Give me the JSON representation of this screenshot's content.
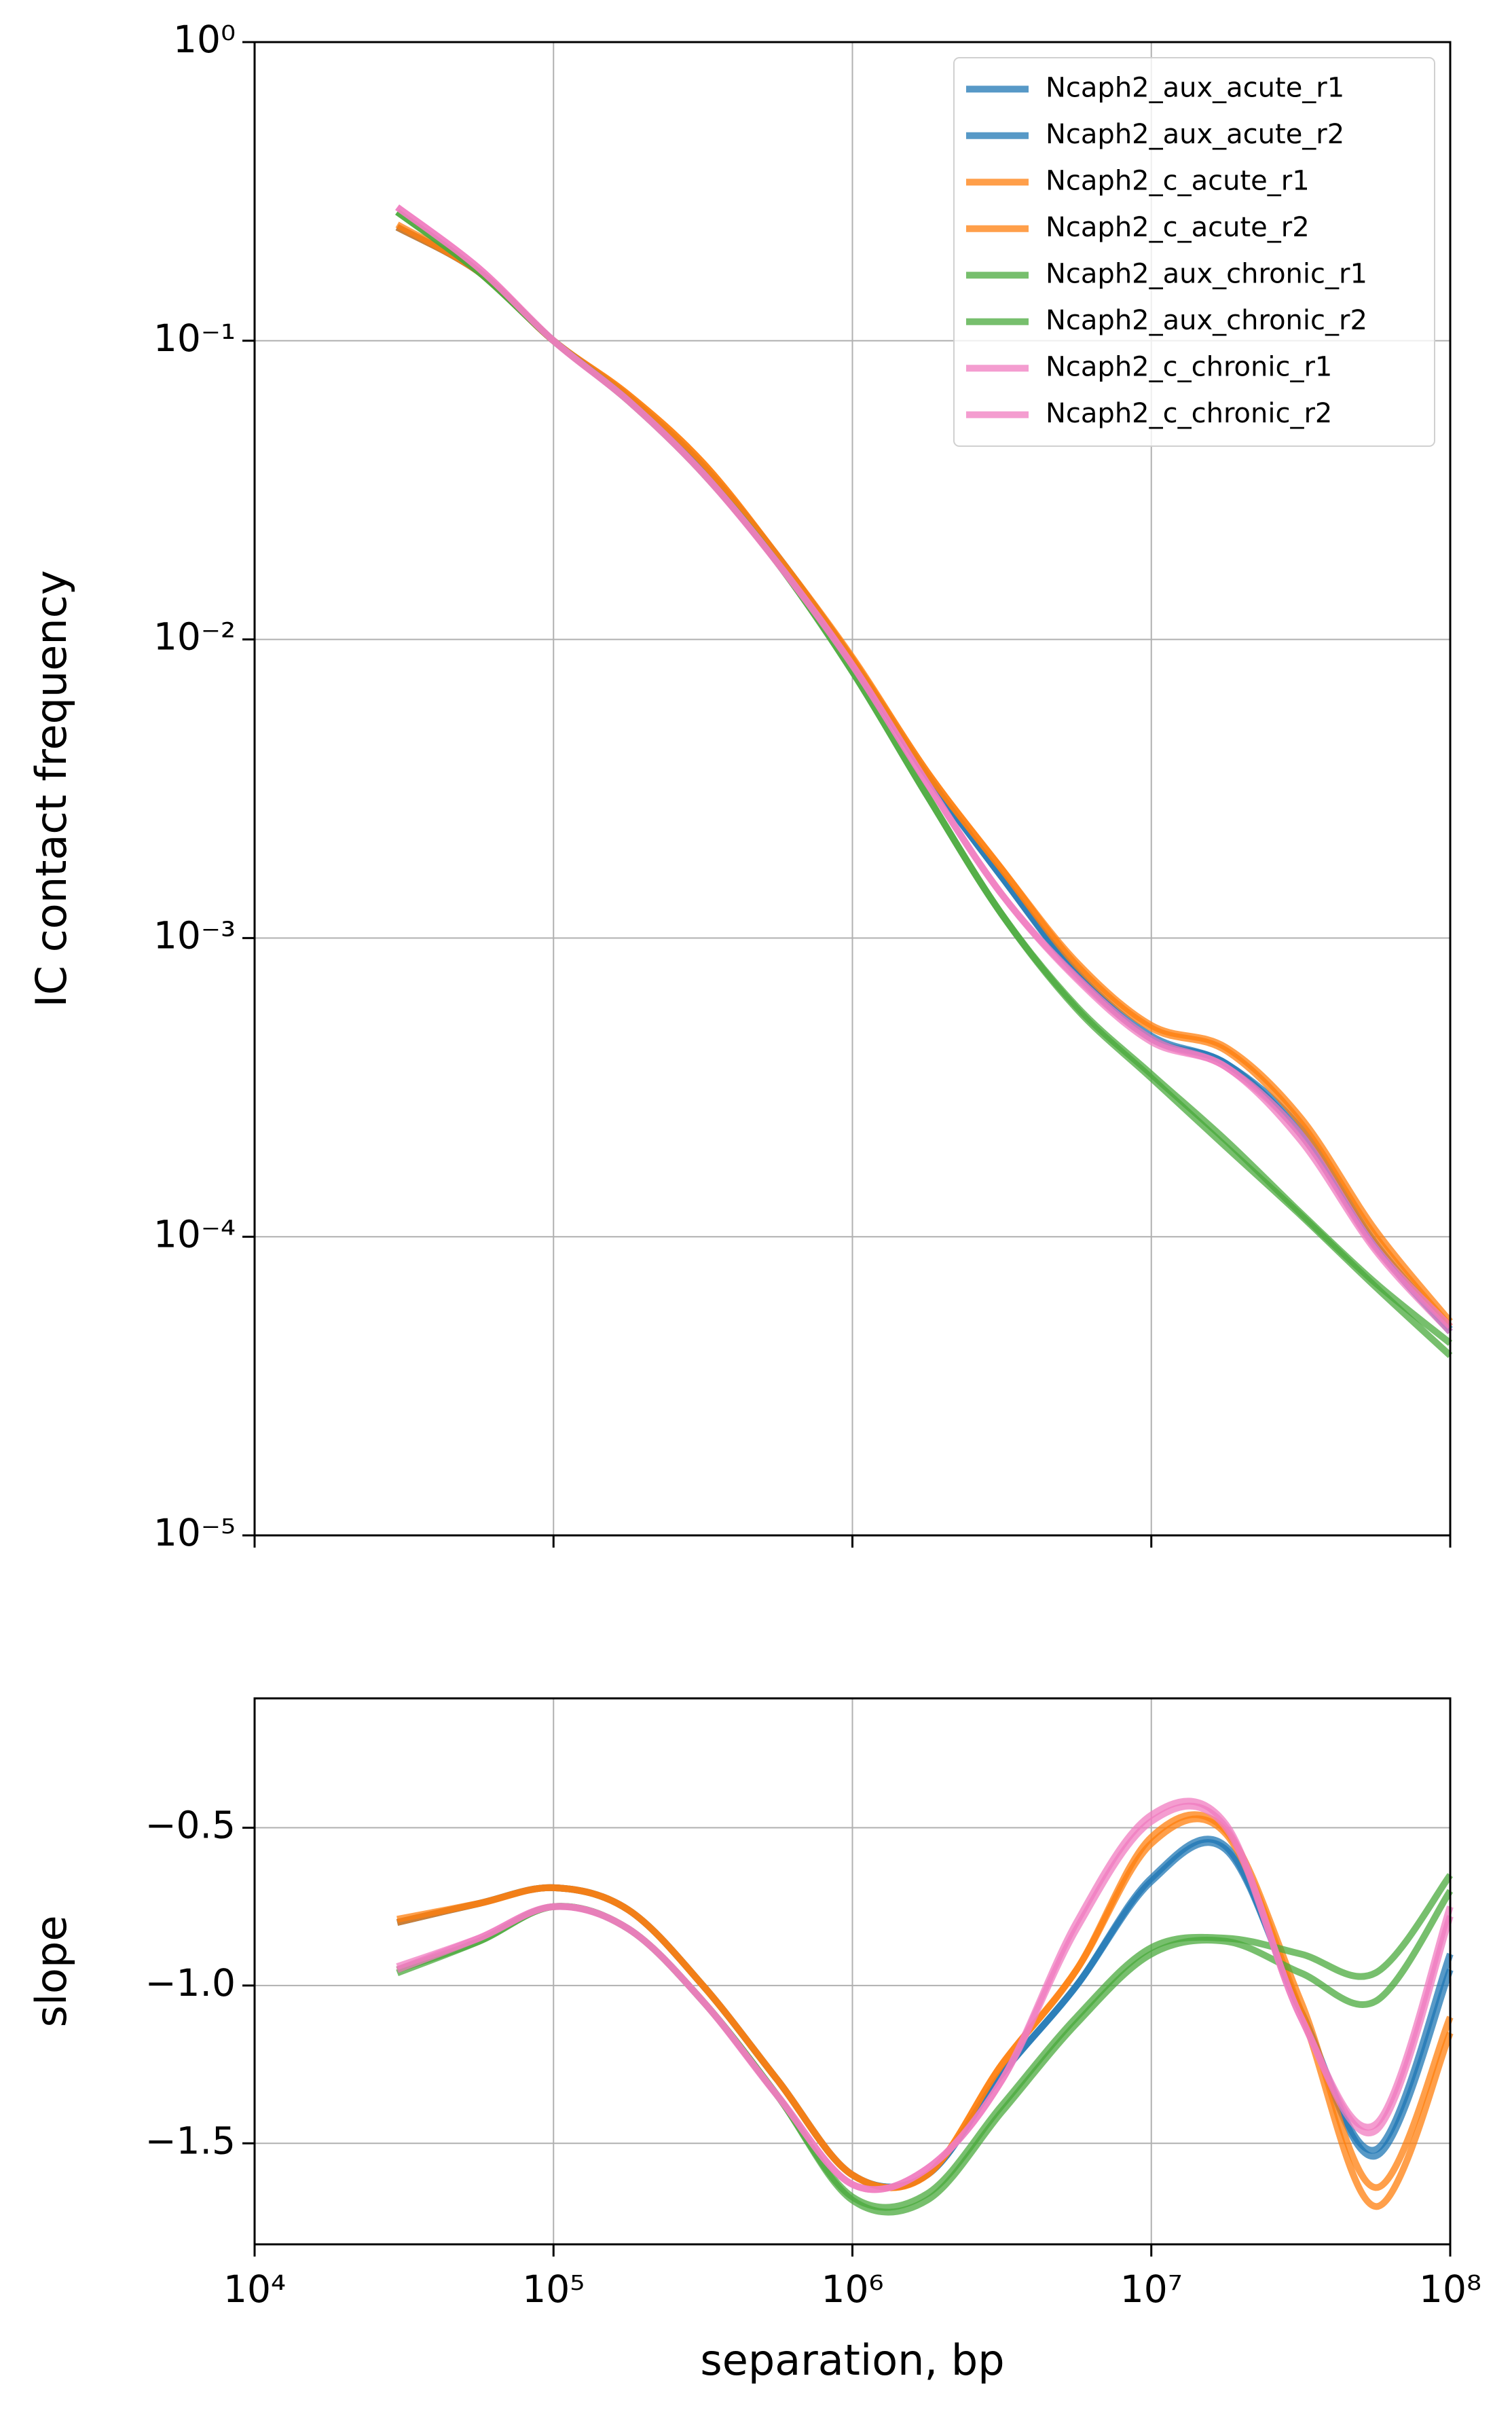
{
  "chart_data": [
    {
      "type": "line",
      "ylabel": "IC contact frequency",
      "log_x": true,
      "log_y": true,
      "grid": true,
      "legend": "upper right",
      "x": [
        30000,
        56234,
        100000,
        177828,
        316228,
        562341,
        1000000,
        1778279,
        3162278,
        5623413,
        10000000,
        17782794,
        31622777,
        56234133,
        100000000
      ],
      "xlim": [
        10000,
        100000000
      ],
      "xticks": [
        10000,
        100000,
        1000000,
        10000000,
        100000000
      ],
      "ylim": [
        1e-05,
        1
      ],
      "yticks": [
        {
          "value": 1,
          "label": "10⁰"
        },
        {
          "value": 0.1,
          "label": "10⁻¹"
        },
        {
          "value": 0.01,
          "label": "10⁻²"
        },
        {
          "value": 0.001,
          "label": "10⁻³"
        },
        {
          "value": 0.0001,
          "label": "10⁻⁴"
        },
        {
          "value": 1e-05,
          "label": "10⁻⁵"
        }
      ],
      "series": [
        {
          "name": "Ncaph2_aux_acute_r1",
          "color": "#1f77b4",
          "values": [
            0.24,
            0.17,
            0.1,
            0.065,
            0.038,
            0.019,
            0.0085,
            0.0035,
            0.0016,
            0.00076,
            0.00046,
            0.00038,
            0.00022,
            9.3e-05,
            4.8e-05
          ]
        },
        {
          "name": "Ncaph2_aux_acute_r2",
          "color": "#1f77b4",
          "values": [
            0.24,
            0.17,
            0.1,
            0.065,
            0.038,
            0.019,
            0.0085,
            0.0035,
            0.0016,
            0.00077,
            0.00047,
            0.00038,
            0.00023,
            9.5e-05,
            4.9e-05
          ]
        },
        {
          "name": "Ncaph2_c_acute_r1",
          "color": "#ff7f0e",
          "values": [
            0.24,
            0.17,
            0.1,
            0.066,
            0.039,
            0.019,
            0.0087,
            0.0036,
            0.0017,
            0.00083,
            0.00051,
            0.00043,
            0.00025,
            0.000105,
            5.2e-05
          ]
        },
        {
          "name": "Ncaph2_c_acute_r2",
          "color": "#ff7f0e",
          "values": [
            0.245,
            0.17,
            0.1,
            0.066,
            0.039,
            0.019,
            0.0086,
            0.0036,
            0.0017,
            0.00081,
            0.0005,
            0.00042,
            0.00024,
            0.0001,
            5e-05
          ]
        },
        {
          "name": "Ncaph2_aux_chronic_r1",
          "color": "#4aa93c",
          "values": [
            0.27,
            0.17,
            0.1,
            0.063,
            0.036,
            0.018,
            0.0078,
            0.003,
            0.0012,
            0.00058,
            0.00034,
            0.0002,
            0.000118,
            6.8e-05,
            4e-05
          ]
        },
        {
          "name": "Ncaph2_aux_chronic_r2",
          "color": "#4aa93c",
          "values": [
            0.27,
            0.17,
            0.1,
            0.063,
            0.036,
            0.018,
            0.0078,
            0.003,
            0.0012,
            0.00059,
            0.00035,
            0.00021,
            0.00012,
            7e-05,
            4.4e-05
          ]
        },
        {
          "name": "Ncaph2_c_chronic_r1",
          "color": "#f07cc0",
          "values": [
            0.28,
            0.175,
            0.1,
            0.063,
            0.036,
            0.018,
            0.0082,
            0.0033,
            0.0014,
            0.00073,
            0.00045,
            0.00037,
            0.00021,
            9e-05,
            4.8e-05
          ]
        },
        {
          "name": "Ncaph2_c_chronic_r2",
          "color": "#f07cc0",
          "values": [
            0.28,
            0.175,
            0.1,
            0.063,
            0.036,
            0.018,
            0.0082,
            0.0033,
            0.0014,
            0.00074,
            0.00046,
            0.00037,
            0.00022,
            9.2e-05,
            5e-05
          ]
        }
      ]
    },
    {
      "type": "line",
      "ylabel": "slope",
      "xlabel": "separation, bp",
      "log_x": true,
      "log_y": false,
      "grid": true,
      "x": [
        30000,
        56234,
        100000,
        177828,
        316228,
        562341,
        1000000,
        1778279,
        3162278,
        5623413,
        10000000,
        17782794,
        31622777,
        56234133,
        100000000
      ],
      "xlim": [
        10000,
        100000000
      ],
      "xticks": [
        {
          "value": 10000,
          "label": "10⁴"
        },
        {
          "value": 100000,
          "label": "10⁵"
        },
        {
          "value": 1000000,
          "label": "10⁶"
        },
        {
          "value": 10000000,
          "label": "10⁷"
        },
        {
          "value": 100000000,
          "label": "10⁸"
        }
      ],
      "ylim": [
        -1.82,
        -0.09
      ],
      "yticks": [
        {
          "value": -0.5,
          "label": "−0.5"
        },
        {
          "value": -1.0,
          "label": "−1.0"
        },
        {
          "value": -1.5,
          "label": "−1.5"
        }
      ],
      "series": [
        {
          "name": "Ncaph2_aux_acute_r1",
          "color": "#1f77b4",
          "values": [
            -0.8,
            -0.74,
            -0.69,
            -0.76,
            -1.0,
            -1.3,
            -1.6,
            -1.6,
            -1.28,
            -1.0,
            -0.66,
            -0.56,
            -1.08,
            -1.52,
            -0.9
          ]
        },
        {
          "name": "Ncaph2_aux_acute_r2",
          "color": "#1f77b4",
          "values": [
            -0.8,
            -0.74,
            -0.69,
            -0.76,
            -1.0,
            -1.3,
            -1.6,
            -1.6,
            -1.28,
            -1.0,
            -0.67,
            -0.57,
            -1.08,
            -1.54,
            -0.95
          ]
        },
        {
          "name": "Ncaph2_c_acute_r1",
          "color": "#ff7f0e",
          "values": [
            -0.8,
            -0.74,
            -0.69,
            -0.76,
            -1.0,
            -1.3,
            -1.6,
            -1.6,
            -1.25,
            -0.95,
            -0.53,
            -0.51,
            -1.05,
            -1.64,
            -1.1
          ]
        },
        {
          "name": "Ncaph2_c_acute_r2",
          "color": "#ff7f0e",
          "values": [
            -0.79,
            -0.74,
            -0.69,
            -0.76,
            -1.0,
            -1.3,
            -1.6,
            -1.6,
            -1.25,
            -0.95,
            -0.55,
            -0.52,
            -1.08,
            -1.7,
            -1.15
          ]
        },
        {
          "name": "Ncaph2_aux_chronic_r1",
          "color": "#4aa93c",
          "values": [
            -0.95,
            -0.86,
            -0.75,
            -0.82,
            -1.05,
            -1.35,
            -1.67,
            -1.66,
            -1.38,
            -1.1,
            -0.88,
            -0.85,
            -0.9,
            -0.96,
            -0.65
          ]
        },
        {
          "name": "Ncaph2_aux_chronic_r2",
          "color": "#4aa93c",
          "values": [
            -0.96,
            -0.86,
            -0.75,
            -0.82,
            -1.05,
            -1.35,
            -1.68,
            -1.68,
            -1.4,
            -1.12,
            -0.9,
            -0.86,
            -0.96,
            -1.05,
            -0.7
          ]
        },
        {
          "name": "Ncaph2_c_chronic_r1",
          "color": "#f07cc0",
          "values": [
            -0.95,
            -0.85,
            -0.75,
            -0.82,
            -1.05,
            -1.35,
            -1.63,
            -1.58,
            -1.3,
            -0.8,
            -0.46,
            -0.49,
            -1.1,
            -1.44,
            -0.75
          ]
        },
        {
          "name": "Ncaph2_c_chronic_r2",
          "color": "#f07cc0",
          "values": [
            -0.94,
            -0.85,
            -0.75,
            -0.82,
            -1.05,
            -1.35,
            -1.63,
            -1.58,
            -1.3,
            -0.82,
            -0.48,
            -0.5,
            -1.1,
            -1.46,
            -0.78
          ]
        }
      ]
    }
  ]
}
